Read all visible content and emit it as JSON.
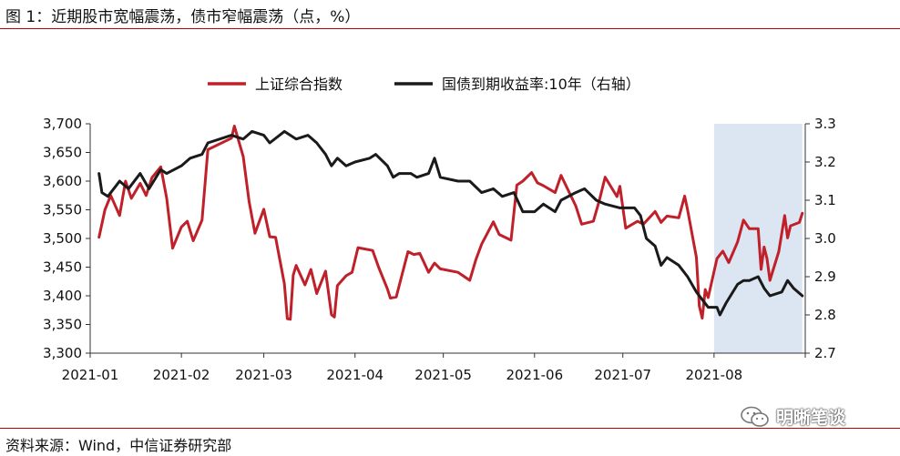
{
  "header": {
    "title": "图 1：近期股市宽幅震荡，债市窄幅震荡（点，%）"
  },
  "footer": {
    "source": "资料来源：Wind，中信证券研究部"
  },
  "watermark": {
    "text": "明晰笔谈",
    "icon": "wechat-icon"
  },
  "chart_data": {
    "type": "line",
    "title": "",
    "xlabel": "",
    "ylabel": "",
    "x_tick_labels": [
      "2021-01",
      "2021-02",
      "2021-03",
      "2021-04",
      "2021-05",
      "2021-06",
      "2021-07",
      "2021-08"
    ],
    "y_left": {
      "min": 3300,
      "max": 3700,
      "ticks": [
        3300,
        3350,
        3400,
        3450,
        3500,
        3550,
        3600,
        3650,
        3700
      ],
      "tick_labels": [
        "3,300",
        "3,350",
        "3,400",
        "3,450",
        "3,500",
        "3,550",
        "3,600",
        "3,650",
        "3,700"
      ]
    },
    "y_right": {
      "min": 2.7,
      "max": 3.3,
      "ticks": [
        2.7,
        2.8,
        2.9,
        3.0,
        3.1,
        3.2,
        3.3
      ],
      "tick_labels": [
        "2.7",
        "2.8",
        "2.9",
        "3.0",
        "3.1",
        "3.2",
        "3.3"
      ]
    },
    "legend_position": "top-center",
    "highlight": {
      "from": "2021-08-01",
      "to": "2021-08-31",
      "color": "#dce6f2"
    },
    "series": [
      {
        "name": "上证综合指数",
        "axis": "left",
        "color": "#c0202a",
        "points": [
          [
            "2021-01-04",
            3502
          ],
          [
            "2021-01-06",
            3550
          ],
          [
            "2021-01-08",
            3575
          ],
          [
            "2021-01-11",
            3540
          ],
          [
            "2021-01-13",
            3600
          ],
          [
            "2021-01-15",
            3570
          ],
          [
            "2021-01-18",
            3596
          ],
          [
            "2021-01-20",
            3575
          ],
          [
            "2021-01-22",
            3606
          ],
          [
            "2021-01-25",
            3625
          ],
          [
            "2021-01-27",
            3570
          ],
          [
            "2021-01-29",
            3483
          ],
          [
            "2021-02-01",
            3520
          ],
          [
            "2021-02-03",
            3530
          ],
          [
            "2021-02-05",
            3496
          ],
          [
            "2021-02-08",
            3532
          ],
          [
            "2021-02-10",
            3655
          ],
          [
            "2021-02-18",
            3675
          ],
          [
            "2021-02-19",
            3696
          ],
          [
            "2021-02-22",
            3643
          ],
          [
            "2021-02-24",
            3565
          ],
          [
            "2021-02-26",
            3509
          ],
          [
            "2021-03-01",
            3551
          ],
          [
            "2021-03-03",
            3503
          ],
          [
            "2021-03-05",
            3502
          ],
          [
            "2021-03-08",
            3421
          ],
          [
            "2021-03-09",
            3360
          ],
          [
            "2021-03-10",
            3359
          ],
          [
            "2021-03-11",
            3436
          ],
          [
            "2021-03-12",
            3453
          ],
          [
            "2021-03-15",
            3419
          ],
          [
            "2021-03-17",
            3446
          ],
          [
            "2021-03-19",
            3404
          ],
          [
            "2021-03-22",
            3443
          ],
          [
            "2021-03-24",
            3367
          ],
          [
            "2021-03-25",
            3363
          ],
          [
            "2021-03-26",
            3418
          ],
          [
            "2021-03-29",
            3435
          ],
          [
            "2021-03-31",
            3441
          ],
          [
            "2021-04-02",
            3484
          ],
          [
            "2021-04-07",
            3479
          ],
          [
            "2021-04-09",
            3450
          ],
          [
            "2021-04-12",
            3412
          ],
          [
            "2021-04-13",
            3396
          ],
          [
            "2021-04-15",
            3398
          ],
          [
            "2021-04-19",
            3477
          ],
          [
            "2021-04-21",
            3472
          ],
          [
            "2021-04-23",
            3474
          ],
          [
            "2021-04-26",
            3441
          ],
          [
            "2021-04-28",
            3457
          ],
          [
            "2021-04-30",
            3447
          ],
          [
            "2021-05-06",
            3441
          ],
          [
            "2021-05-10",
            3427
          ],
          [
            "2021-05-12",
            3462
          ],
          [
            "2021-05-14",
            3490
          ],
          [
            "2021-05-18",
            3529
          ],
          [
            "2021-05-20",
            3507
          ],
          [
            "2021-05-24",
            3497
          ],
          [
            "2021-05-26",
            3593
          ],
          [
            "2021-05-28",
            3600
          ],
          [
            "2021-05-31",
            3615
          ],
          [
            "2021-06-02",
            3597
          ],
          [
            "2021-06-04",
            3592
          ],
          [
            "2021-06-08",
            3580
          ],
          [
            "2021-06-10",
            3610
          ],
          [
            "2021-06-15",
            3557
          ],
          [
            "2021-06-17",
            3525
          ],
          [
            "2021-06-21",
            3530
          ],
          [
            "2021-06-23",
            3566
          ],
          [
            "2021-06-25",
            3607
          ],
          [
            "2021-06-29",
            3573
          ],
          [
            "2021-06-30",
            3591
          ],
          [
            "2021-07-02",
            3518
          ],
          [
            "2021-07-06",
            3530
          ],
          [
            "2021-07-08",
            3525
          ],
          [
            "2021-07-12",
            3547
          ],
          [
            "2021-07-14",
            3528
          ],
          [
            "2021-07-16",
            3539
          ],
          [
            "2021-07-20",
            3536
          ],
          [
            "2021-07-22",
            3574
          ],
          [
            "2021-07-23",
            3550
          ],
          [
            "2021-07-26",
            3467
          ],
          [
            "2021-07-27",
            3382
          ],
          [
            "2021-07-28",
            3361
          ],
          [
            "2021-07-29",
            3411
          ],
          [
            "2021-07-30",
            3397
          ],
          [
            "2021-08-02",
            3465
          ],
          [
            "2021-08-04",
            3478
          ],
          [
            "2021-08-06",
            3458
          ],
          [
            "2021-08-09",
            3494
          ],
          [
            "2021-08-11",
            3532
          ],
          [
            "2021-08-13",
            3517
          ],
          [
            "2021-08-16",
            3517
          ],
          [
            "2021-08-17",
            3446
          ],
          [
            "2021-08-18",
            3485
          ],
          [
            "2021-08-19",
            3465
          ],
          [
            "2021-08-20",
            3427
          ],
          [
            "2021-08-23",
            3477
          ],
          [
            "2021-08-25",
            3540
          ],
          [
            "2021-08-26",
            3501
          ],
          [
            "2021-08-27",
            3522
          ],
          [
            "2021-08-30",
            3528
          ],
          [
            "2021-08-31",
            3544
          ]
        ]
      },
      {
        "name": "国债到期收益率:10年（右轴）",
        "axis": "right",
        "color": "#1a1a1a",
        "points": [
          [
            "2021-01-04",
            3.17
          ],
          [
            "2021-01-05",
            3.12
          ],
          [
            "2021-01-07",
            3.11
          ],
          [
            "2021-01-11",
            3.15
          ],
          [
            "2021-01-14",
            3.13
          ],
          [
            "2021-01-18",
            3.17
          ],
          [
            "2021-01-21",
            3.13
          ],
          [
            "2021-01-25",
            3.18
          ],
          [
            "2021-01-27",
            3.17
          ],
          [
            "2021-02-01",
            3.19
          ],
          [
            "2021-02-04",
            3.21
          ],
          [
            "2021-02-08",
            3.22
          ],
          [
            "2021-02-10",
            3.25
          ],
          [
            "2021-02-18",
            3.27
          ],
          [
            "2021-02-22",
            3.26
          ],
          [
            "2021-02-25",
            3.28
          ],
          [
            "2021-03-01",
            3.27
          ],
          [
            "2021-03-03",
            3.25
          ],
          [
            "2021-03-08",
            3.28
          ],
          [
            "2021-03-12",
            3.26
          ],
          [
            "2021-03-16",
            3.27
          ],
          [
            "2021-03-19",
            3.25
          ],
          [
            "2021-03-22",
            3.22
          ],
          [
            "2021-03-24",
            3.19
          ],
          [
            "2021-03-26",
            3.21
          ],
          [
            "2021-03-29",
            3.19
          ],
          [
            "2021-04-01",
            3.2
          ],
          [
            "2021-04-06",
            3.21
          ],
          [
            "2021-04-08",
            3.22
          ],
          [
            "2021-04-12",
            3.19
          ],
          [
            "2021-04-14",
            3.16
          ],
          [
            "2021-04-16",
            3.17
          ],
          [
            "2021-04-20",
            3.17
          ],
          [
            "2021-04-22",
            3.16
          ],
          [
            "2021-04-26",
            3.17
          ],
          [
            "2021-04-28",
            3.21
          ],
          [
            "2021-04-30",
            3.16
          ],
          [
            "2021-05-06",
            3.15
          ],
          [
            "2021-05-10",
            3.15
          ],
          [
            "2021-05-14",
            3.12
          ],
          [
            "2021-05-18",
            3.13
          ],
          [
            "2021-05-21",
            3.11
          ],
          [
            "2021-05-25",
            3.12
          ],
          [
            "2021-05-28",
            3.07
          ],
          [
            "2021-06-01",
            3.07
          ],
          [
            "2021-06-04",
            3.09
          ],
          [
            "2021-06-08",
            3.07
          ],
          [
            "2021-06-10",
            3.1
          ],
          [
            "2021-06-15",
            3.12
          ],
          [
            "2021-06-18",
            3.13
          ],
          [
            "2021-06-22",
            3.1
          ],
          [
            "2021-06-25",
            3.09
          ],
          [
            "2021-06-30",
            3.08
          ],
          [
            "2021-07-05",
            3.08
          ],
          [
            "2021-07-07",
            3.06
          ],
          [
            "2021-07-09",
            3.0
          ],
          [
            "2021-07-12",
            2.98
          ],
          [
            "2021-07-14",
            2.93
          ],
          [
            "2021-07-16",
            2.95
          ],
          [
            "2021-07-20",
            2.93
          ],
          [
            "2021-07-23",
            2.9
          ],
          [
            "2021-07-26",
            2.86
          ],
          [
            "2021-07-28",
            2.84
          ],
          [
            "2021-07-30",
            2.82
          ],
          [
            "2021-08-02",
            2.82
          ],
          [
            "2021-08-03",
            2.8
          ],
          [
            "2021-08-05",
            2.83
          ],
          [
            "2021-08-09",
            2.88
          ],
          [
            "2021-08-11",
            2.89
          ],
          [
            "2021-08-13",
            2.89
          ],
          [
            "2021-08-16",
            2.9
          ],
          [
            "2021-08-18",
            2.87
          ],
          [
            "2021-08-20",
            2.85
          ],
          [
            "2021-08-24",
            2.86
          ],
          [
            "2021-08-26",
            2.89
          ],
          [
            "2021-08-28",
            2.87
          ],
          [
            "2021-08-31",
            2.85
          ]
        ]
      }
    ]
  }
}
